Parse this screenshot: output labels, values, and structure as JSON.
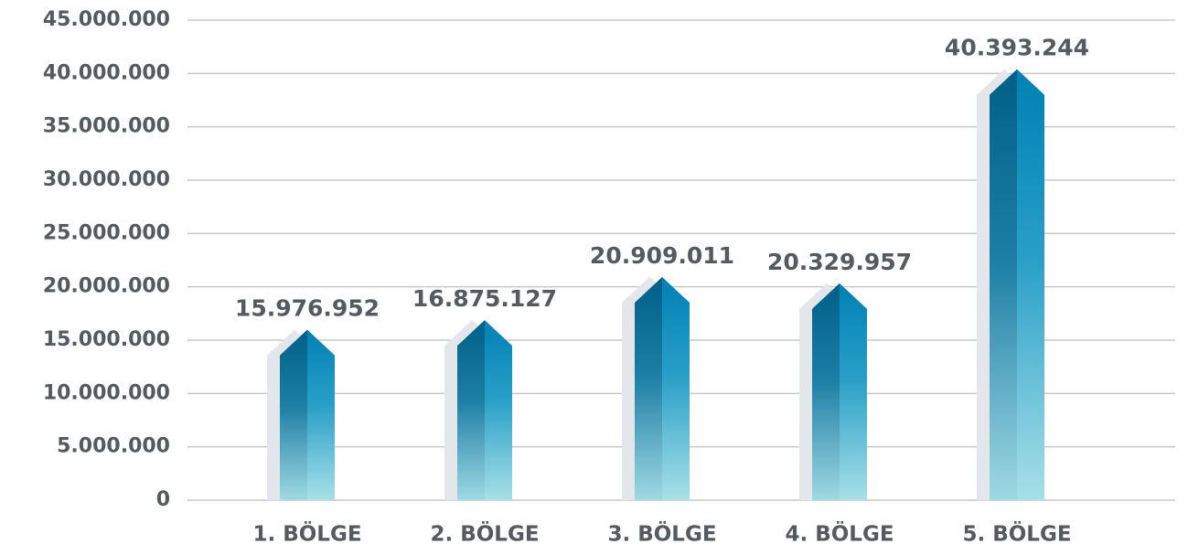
{
  "chart_data": {
    "type": "bar",
    "categories": [
      "1. BÖLGE",
      "2. BÖLGE",
      "3. BÖLGE",
      "4. BÖLGE",
      "5. BÖLGE"
    ],
    "values": [
      15976952,
      16875127,
      20909011,
      20329957,
      40393244
    ],
    "value_labels": [
      "15.976.952",
      "16.875.127",
      "20.909.011",
      "20.329.957",
      "40.393.244"
    ],
    "color": "#0080b0",
    "ylim": [
      0,
      45000000
    ],
    "yticks": [
      0,
      {
        "value": 5000000,
        "label": "5.000.000"
      },
      {
        "value": 10000000,
        "label": "10.000.000"
      },
      {
        "value": 15000000,
        "label": "15.000.000"
      },
      {
        "value": 20000000,
        "label": "20.000.000"
      },
      {
        "value": 25000000,
        "label": "25.000.000"
      },
      {
        "value": 30000000,
        "label": "30.000.000"
      },
      {
        "value": 35000000,
        "label": "35.000.000"
      },
      {
        "value": 40000000,
        "label": "40.000.000"
      },
      {
        "value": 45000000,
        "label": "45.000.000"
      }
    ],
    "grid": true
  }
}
